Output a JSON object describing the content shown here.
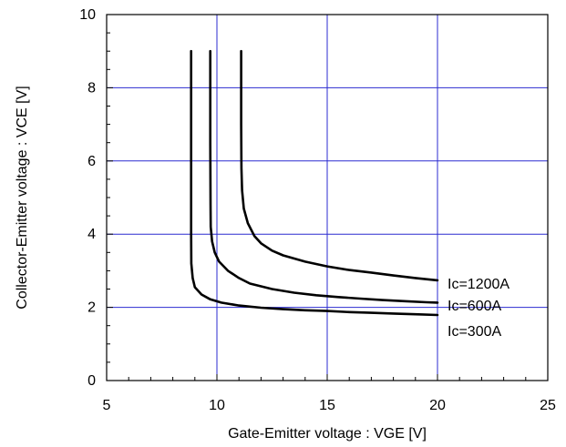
{
  "chart_data": {
    "type": "line",
    "xlabel": "Gate-Emitter voltage : VGE [V]",
    "ylabel": "Collector-Emitter voltage : VCE [V]",
    "xlim": [
      5,
      25
    ],
    "ylim": [
      0,
      10
    ],
    "x_ticks": [
      5,
      10,
      15,
      20,
      25
    ],
    "y_ticks": [
      0,
      2,
      4,
      6,
      8,
      10
    ],
    "x_tick_labels": [
      "5",
      "10",
      "15",
      "20",
      "25"
    ],
    "y_tick_labels": [
      "0",
      "2",
      "4",
      "6",
      "8",
      "10"
    ],
    "grid": true,
    "grid_color": "#2b2bd0",
    "line_color": "#000000",
    "series": [
      {
        "name": "Ic=300A",
        "points": [
          [
            8.83,
            9.0
          ],
          [
            8.83,
            6.0
          ],
          [
            8.83,
            4.0
          ],
          [
            8.84,
            3.2
          ],
          [
            8.9,
            2.8
          ],
          [
            9.0,
            2.55
          ],
          [
            9.3,
            2.35
          ],
          [
            9.7,
            2.22
          ],
          [
            10.2,
            2.13
          ],
          [
            11.0,
            2.05
          ],
          [
            12.0,
            1.99
          ],
          [
            13.0,
            1.95
          ],
          [
            14.0,
            1.92
          ],
          [
            15.0,
            1.9
          ],
          [
            16.0,
            1.87
          ],
          [
            17.0,
            1.85
          ],
          [
            18.0,
            1.83
          ],
          [
            19.0,
            1.81
          ],
          [
            20.0,
            1.79
          ]
        ]
      },
      {
        "name": "Ic=600A",
        "points": [
          [
            9.7,
            9.0
          ],
          [
            9.7,
            6.5
          ],
          [
            9.71,
            4.8
          ],
          [
            9.72,
            4.2
          ],
          [
            9.78,
            3.8
          ],
          [
            9.9,
            3.5
          ],
          [
            10.1,
            3.25
          ],
          [
            10.5,
            3.0
          ],
          [
            11.0,
            2.8
          ],
          [
            11.5,
            2.65
          ],
          [
            12.5,
            2.5
          ],
          [
            13.5,
            2.4
          ],
          [
            14.5,
            2.33
          ],
          [
            15.5,
            2.28
          ],
          [
            16.5,
            2.24
          ],
          [
            17.5,
            2.2
          ],
          [
            18.5,
            2.17
          ],
          [
            19.5,
            2.14
          ],
          [
            20.0,
            2.13
          ]
        ]
      },
      {
        "name": "Ic=1200A",
        "points": [
          [
            11.1,
            9.0
          ],
          [
            11.1,
            7.0
          ],
          [
            11.11,
            5.8
          ],
          [
            11.14,
            5.2
          ],
          [
            11.22,
            4.7
          ],
          [
            11.4,
            4.3
          ],
          [
            11.7,
            3.95
          ],
          [
            12.0,
            3.75
          ],
          [
            12.5,
            3.55
          ],
          [
            13.0,
            3.42
          ],
          [
            14.0,
            3.25
          ],
          [
            15.0,
            3.12
          ],
          [
            16.0,
            3.02
          ],
          [
            17.0,
            2.95
          ],
          [
            18.0,
            2.87
          ],
          [
            19.0,
            2.8
          ],
          [
            20.0,
            2.74
          ]
        ]
      }
    ],
    "series_labels": [
      "Ic=1200A",
      "Ic=600A",
      "Ic=300A"
    ]
  }
}
